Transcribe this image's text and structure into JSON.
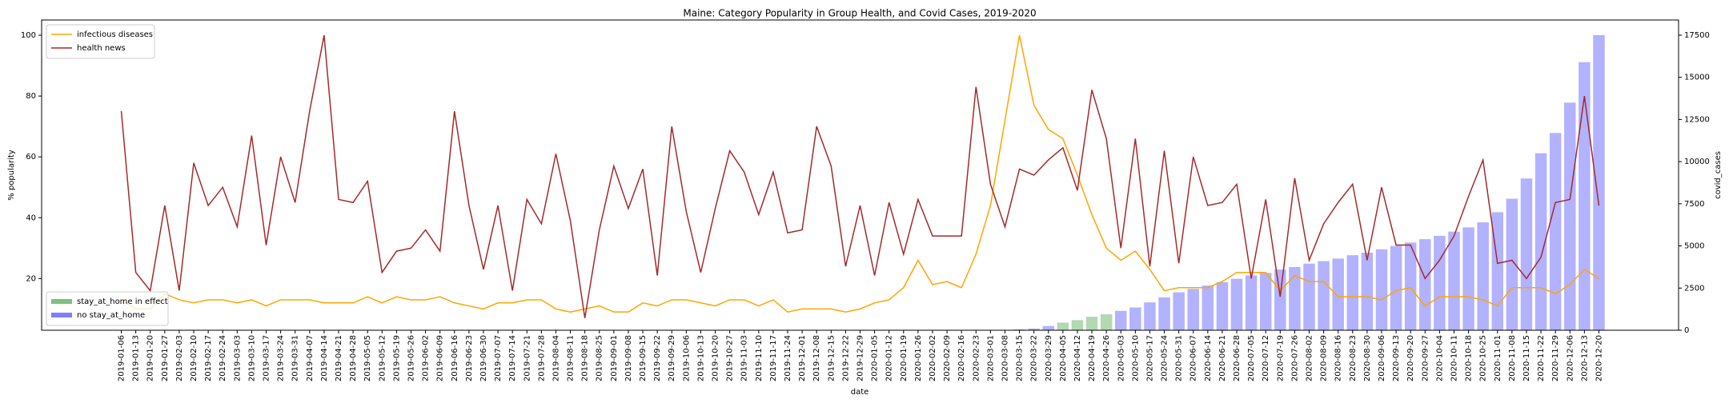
{
  "chart_data": {
    "type": "line_bar",
    "title": "Maine: Category Popularity in Group Health, and Covid Cases, 2019-2020",
    "xlabel": "date",
    "ylabel": "% popularity",
    "y2label": "covid_cases",
    "ylim": [
      3,
      105
    ],
    "yticks": [
      20,
      40,
      60,
      80,
      100
    ],
    "y2lim": [
      0,
      18400
    ],
    "y2ticks": [
      0,
      2500,
      5000,
      7500,
      10000,
      12500,
      15000,
      17500
    ],
    "line_legend": "upper left",
    "bar_legend": "lower left",
    "categories": [
      "2019-01-06",
      "2019-01-13",
      "2019-01-20",
      "2019-01-27",
      "2019-02-03",
      "2019-02-10",
      "2019-02-17",
      "2019-02-24",
      "2019-03-03",
      "2019-03-10",
      "2019-03-17",
      "2019-03-24",
      "2019-03-31",
      "2019-04-07",
      "2019-04-14",
      "2019-04-21",
      "2019-04-28",
      "2019-05-05",
      "2019-05-12",
      "2019-05-19",
      "2019-05-26",
      "2019-06-02",
      "2019-06-09",
      "2019-06-16",
      "2019-06-23",
      "2019-06-30",
      "2019-07-07",
      "2019-07-14",
      "2019-07-21",
      "2019-07-28",
      "2019-08-04",
      "2019-08-11",
      "2019-08-18",
      "2019-08-25",
      "2019-09-01",
      "2019-09-08",
      "2019-09-15",
      "2019-09-22",
      "2019-09-29",
      "2019-10-06",
      "2019-10-13",
      "2019-10-20",
      "2019-10-27",
      "2019-11-03",
      "2019-11-10",
      "2019-11-17",
      "2019-11-24",
      "2019-12-01",
      "2019-12-08",
      "2019-12-15",
      "2019-12-22",
      "2019-12-29",
      "2020-01-05",
      "2020-01-12",
      "2020-01-19",
      "2020-01-26",
      "2020-02-02",
      "2020-02-09",
      "2020-02-16",
      "2020-02-23",
      "2020-03-01",
      "2020-03-08",
      "2020-03-15",
      "2020-03-22",
      "2020-03-29",
      "2020-04-05",
      "2020-04-12",
      "2020-04-19",
      "2020-04-26",
      "2020-05-03",
      "2020-05-10",
      "2020-05-17",
      "2020-05-24",
      "2020-05-31",
      "2020-06-07",
      "2020-06-14",
      "2020-06-21",
      "2020-06-28",
      "2020-07-05",
      "2020-07-12",
      "2020-07-19",
      "2020-07-26",
      "2020-08-02",
      "2020-08-09",
      "2020-08-16",
      "2020-08-23",
      "2020-08-30",
      "2020-09-06",
      "2020-09-13",
      "2020-09-20",
      "2020-09-27",
      "2020-10-04",
      "2020-10-11",
      "2020-10-18",
      "2020-10-25",
      "2020-11-01",
      "2020-11-08",
      "2020-11-15",
      "2020-11-22",
      "2020-11-29",
      "2020-12-06",
      "2020-12-13",
      "2020-12-20"
    ],
    "series": [
      {
        "name": "infectious diseases",
        "kind": "line",
        "color": "#ffa500",
        "values": [
          13,
          10,
          10,
          15,
          13,
          12,
          13,
          13,
          12,
          13,
          11,
          13,
          13,
          13,
          12,
          12,
          12,
          14,
          12,
          14,
          13,
          13,
          14,
          12,
          11,
          10,
          12,
          12,
          13,
          13,
          10,
          9,
          10,
          11,
          9,
          9,
          12,
          11,
          13,
          13,
          12,
          11,
          13,
          13,
          11,
          13,
          9,
          10,
          10,
          10,
          9,
          10,
          12,
          13,
          17,
          26,
          18,
          19,
          17,
          28,
          44,
          72,
          100,
          77,
          69,
          66,
          54,
          41,
          30,
          26,
          29,
          23,
          16,
          17,
          17,
          17,
          19,
          22,
          22,
          22,
          16,
          21,
          19,
          19,
          14,
          14,
          14,
          13,
          16,
          17,
          11,
          14,
          14,
          14,
          13,
          11,
          17,
          17,
          17,
          15,
          18,
          23,
          20
        ]
      },
      {
        "name": "health news",
        "kind": "line",
        "color": "#a52a2a",
        "values": [
          75,
          22,
          16,
          44,
          16,
          58,
          44,
          50,
          37,
          67,
          31,
          60,
          45,
          75,
          100,
          46,
          45,
          52,
          22,
          29,
          30,
          36,
          29,
          75,
          44,
          23,
          44,
          16,
          46,
          38,
          61,
          39,
          7,
          36,
          57,
          43,
          56,
          21,
          70,
          42,
          22,
          43,
          62,
          55,
          41,
          55,
          35,
          36,
          70,
          57,
          24,
          44,
          21,
          45,
          28,
          46,
          34,
          34,
          34,
          83,
          51,
          37,
          56,
          54,
          59,
          63,
          49,
          82,
          66,
          30,
          66,
          24,
          62,
          25,
          60,
          44,
          45,
          51,
          20,
          46,
          14,
          53,
          26,
          38,
          45,
          51,
          26,
          50,
          31,
          31,
          20,
          26,
          34,
          47,
          59,
          25,
          26,
          20,
          27,
          45,
          46,
          80,
          44
        ]
      },
      {
        "name": "stay_at_home in effect",
        "kind": "bar",
        "axis": "y2",
        "color": "#008000",
        "values": [
          null,
          null,
          null,
          null,
          null,
          null,
          null,
          null,
          null,
          null,
          null,
          null,
          null,
          null,
          null,
          null,
          null,
          null,
          null,
          null,
          null,
          null,
          null,
          null,
          null,
          null,
          null,
          null,
          null,
          null,
          null,
          null,
          null,
          null,
          null,
          null,
          null,
          null,
          null,
          null,
          null,
          null,
          null,
          null,
          null,
          null,
          null,
          null,
          null,
          null,
          null,
          null,
          null,
          null,
          null,
          null,
          null,
          null,
          null,
          null,
          null,
          null,
          null,
          null,
          null,
          450,
          600,
          800,
          950,
          null,
          null,
          null,
          null,
          null,
          null,
          null,
          null,
          null,
          null,
          null,
          null,
          null,
          null,
          null,
          null,
          null,
          null,
          null,
          null,
          null,
          null,
          null,
          null,
          null,
          null,
          null,
          null,
          null,
          null,
          null,
          null,
          null,
          null
        ]
      },
      {
        "name": "no stay_at_home",
        "kind": "bar",
        "axis": "y2",
        "color": "#0000ff",
        "values": [
          0,
          0,
          0,
          0,
          0,
          0,
          0,
          0,
          0,
          0,
          0,
          0,
          0,
          0,
          0,
          0,
          0,
          0,
          0,
          0,
          0,
          0,
          0,
          0,
          0,
          0,
          0,
          0,
          0,
          0,
          0,
          0,
          0,
          0,
          0,
          0,
          0,
          0,
          0,
          0,
          0,
          0,
          0,
          0,
          0,
          0,
          0,
          0,
          0,
          0,
          0,
          0,
          0,
          0,
          0,
          0,
          0,
          0,
          0,
          0,
          0,
          0,
          50,
          100,
          250,
          null,
          null,
          null,
          null,
          1150,
          1350,
          1650,
          1950,
          2250,
          2450,
          2650,
          2850,
          3050,
          3250,
          3400,
          3600,
          3750,
          3950,
          4100,
          4250,
          4450,
          4600,
          4800,
          5000,
          5200,
          5400,
          5600,
          5850,
          6100,
          6400,
          7000,
          7800,
          9000,
          10500,
          11700,
          13500,
          15900,
          17500
        ]
      }
    ]
  }
}
